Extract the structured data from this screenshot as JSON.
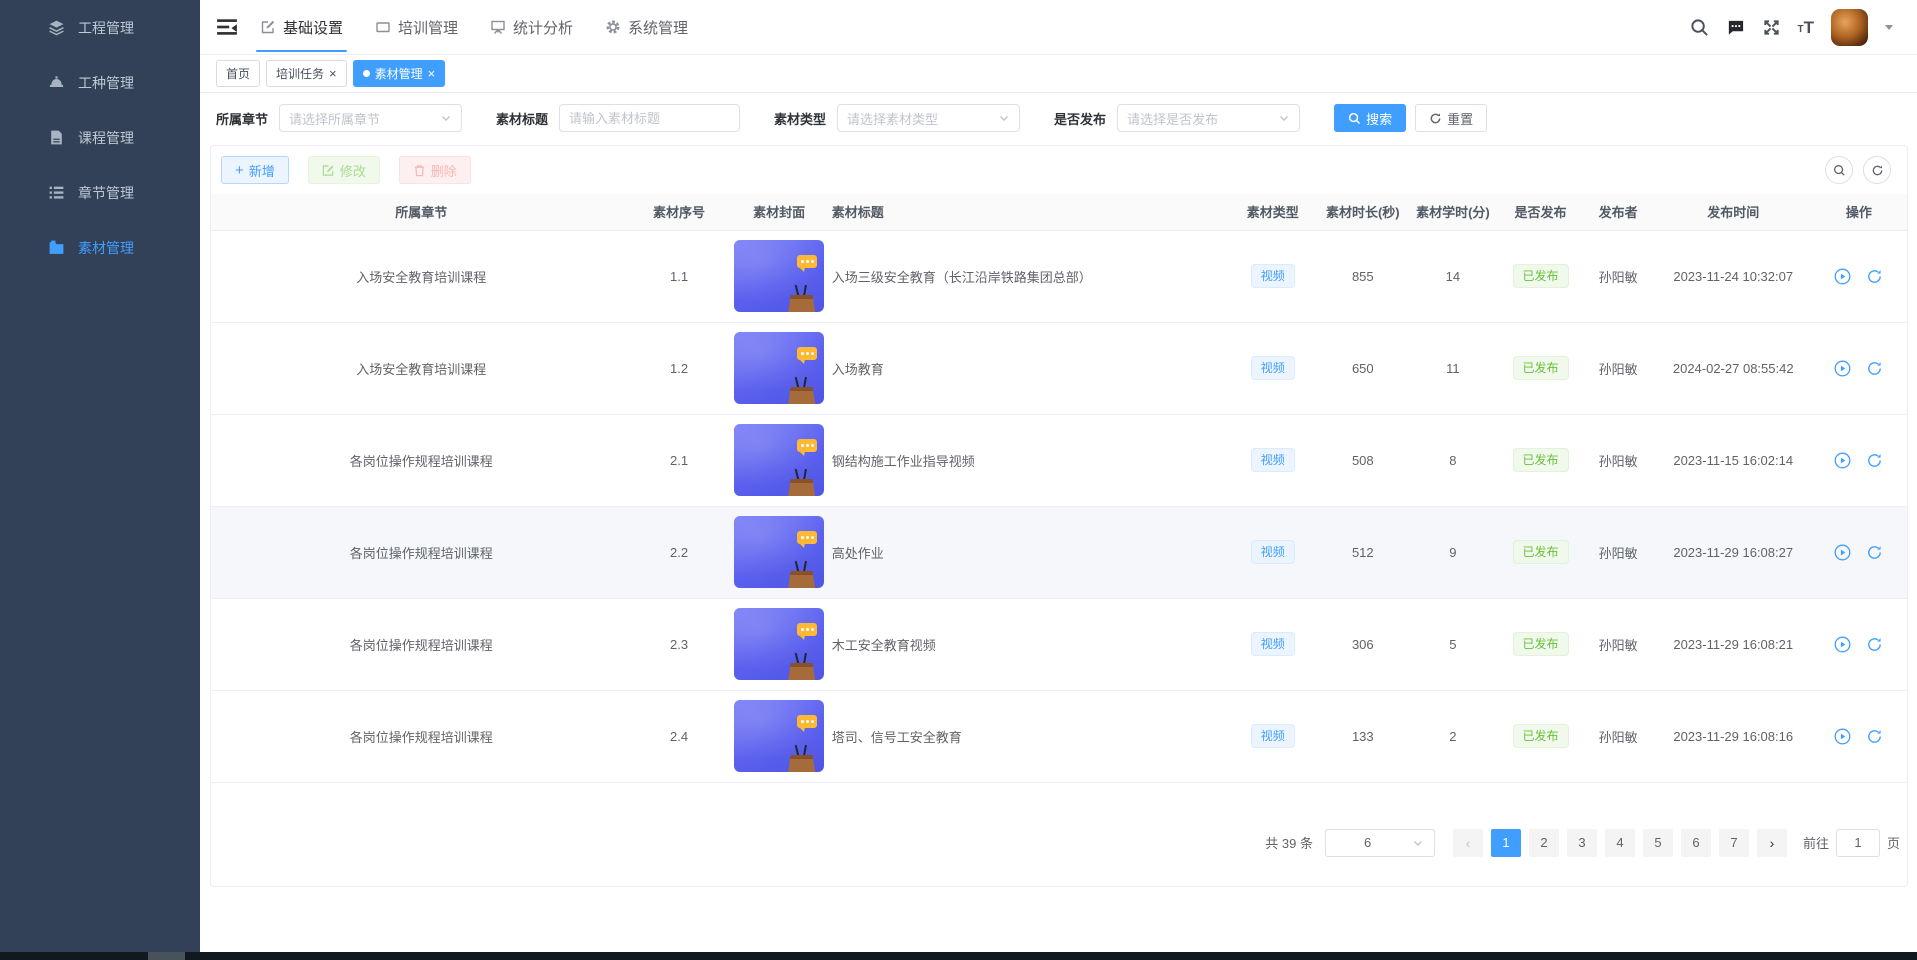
{
  "colors": {
    "accent": "#409eff",
    "sidebar_bg": "#324158",
    "success": "#67c23a",
    "tag_blue_bg": "#ecf5ff",
    "tag_green_bg": "#f0f9eb",
    "bottom_bar": "#11181e"
  },
  "sidebar": {
    "items": [
      {
        "label": "工程管理",
        "icon": "layers-icon",
        "active": false
      },
      {
        "label": "工种管理",
        "icon": "hardhat-icon",
        "active": false
      },
      {
        "label": "课程管理",
        "icon": "document-icon",
        "active": false
      },
      {
        "label": "章节管理",
        "icon": "list-icon",
        "active": false
      },
      {
        "label": "素材管理",
        "icon": "video-folder-icon",
        "active": true
      }
    ]
  },
  "topnav": {
    "items": [
      {
        "label": "基础设置",
        "icon": "edit-square-icon",
        "active": true
      },
      {
        "label": "培训管理",
        "icon": "frame-icon",
        "active": false
      },
      {
        "label": "统计分析",
        "icon": "monitor-icon",
        "active": false
      },
      {
        "label": "系统管理",
        "icon": "gear-icon",
        "active": false
      }
    ],
    "right_icons": [
      "search-icon",
      "message-icon",
      "fullscreen-icon",
      "font-size-icon",
      "avatar",
      "caret-down-icon"
    ]
  },
  "tabs": {
    "items": [
      {
        "label": "首页",
        "closable": false,
        "active": false
      },
      {
        "label": "培训任务",
        "closable": true,
        "active": false
      },
      {
        "label": "素材管理",
        "closable": true,
        "active": true
      }
    ]
  },
  "filters": {
    "chapter": {
      "label": "所属章节",
      "placeholder": "请选择所属章节"
    },
    "title": {
      "label": "素材标题",
      "placeholder": "请输入素材标题"
    },
    "type": {
      "label": "素材类型",
      "placeholder": "请选择素材类型"
    },
    "published": {
      "label": "是否发布",
      "placeholder": "请选择是否发布"
    },
    "search_label": "搜索",
    "reset_label": "重置"
  },
  "toolbar": {
    "add_label": "新增",
    "edit_label": "修改",
    "delete_label": "删除"
  },
  "table": {
    "columns": [
      "所属章节",
      "素材序号",
      "素材封面",
      "素材标题",
      "素材类型",
      "素材时长(秒)",
      "素材学时(分)",
      "是否发布",
      "发布者",
      "发布时间",
      "操作"
    ],
    "rows": [
      {
        "chapter": "入场安全教育培训课程",
        "seq": "1.1",
        "title": "入场三级安全教育（长江沿岸铁路集团总部）",
        "type": "视频",
        "duration": "855",
        "minutes": "14",
        "status": "已发布",
        "publisher": "孙阳敏",
        "published_at": "2023-11-24 10:32:07",
        "highlight": false
      },
      {
        "chapter": "入场安全教育培训课程",
        "seq": "1.2",
        "title": "入场教育",
        "type": "视频",
        "duration": "650",
        "minutes": "11",
        "status": "已发布",
        "publisher": "孙阳敏",
        "published_at": "2024-02-27 08:55:42",
        "highlight": false
      },
      {
        "chapter": "各岗位操作规程培训课程",
        "seq": "2.1",
        "title": "钢结构施工作业指导视频",
        "type": "视频",
        "duration": "508",
        "minutes": "8",
        "status": "已发布",
        "publisher": "孙阳敏",
        "published_at": "2023-11-15 16:02:14",
        "highlight": false
      },
      {
        "chapter": "各岗位操作规程培训课程",
        "seq": "2.2",
        "title": "高处作业",
        "type": "视频",
        "duration": "512",
        "minutes": "9",
        "status": "已发布",
        "publisher": "孙阳敏",
        "published_at": "2023-11-29 16:08:27",
        "highlight": true
      },
      {
        "chapter": "各岗位操作规程培训课程",
        "seq": "2.3",
        "title": "木工安全教育视频",
        "type": "视频",
        "duration": "306",
        "minutes": "5",
        "status": "已发布",
        "publisher": "孙阳敏",
        "published_at": "2023-11-29 16:08:21",
        "highlight": false
      },
      {
        "chapter": "各岗位操作规程培训课程",
        "seq": "2.4",
        "title": "塔司、信号工安全教育",
        "type": "视频",
        "duration": "133",
        "minutes": "2",
        "status": "已发布",
        "publisher": "孙阳敏",
        "published_at": "2023-11-29 16:08:16",
        "highlight": false
      }
    ],
    "row_op_icons": [
      "play-circle-icon",
      "refresh-icon"
    ]
  },
  "pagination": {
    "total": "共 39 条",
    "page_size": "6",
    "pages": [
      "1",
      "2",
      "3",
      "4",
      "5",
      "6",
      "7"
    ],
    "active_page": "1",
    "goto_label": "前往",
    "goto_value": "1",
    "unit_label": "页"
  }
}
